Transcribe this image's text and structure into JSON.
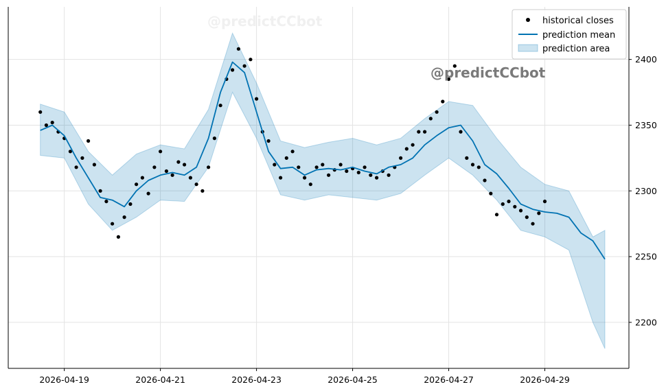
{
  "chart_data": {
    "type": "line",
    "title": "",
    "xlabel": "",
    "ylabel": "",
    "x_axis": {
      "type": "date",
      "range": [
        "2026-04-17T20:00",
        "2026-04-30T18:00"
      ],
      "ticks": [
        "2026-04-19",
        "2026-04-21",
        "2026-04-23",
        "2026-04-25",
        "2026-04-27",
        "2026-04-29"
      ]
    },
    "y_axis": {
      "position": "right",
      "range": [
        2165,
        2440
      ],
      "ticks": [
        2200,
        2250,
        2300,
        2350,
        2400
      ]
    },
    "grid": true,
    "legend": {
      "placement": "top-right",
      "entries": [
        {
          "label": "historical closes",
          "marker": "dot",
          "color": "#000000"
        },
        {
          "label": "prediction mean",
          "marker": "line",
          "color": "#0072B2"
        },
        {
          "label": "prediction area",
          "marker": "patch",
          "color": "#0072B2"
        }
      ]
    },
    "watermark": "@predictCCbot",
    "series": [
      {
        "name": "prediction mean",
        "color": "#0072B2",
        "x": [
          "2026-04-18T12:00",
          "2026-04-18T18:00",
          "2026-04-19T00:00",
          "2026-04-19T06:00",
          "2026-04-19T12:00",
          "2026-04-19T18:00",
          "2026-04-20T00:00",
          "2026-04-20T06:00",
          "2026-04-20T12:00",
          "2026-04-20T18:00",
          "2026-04-21T00:00",
          "2026-04-21T06:00",
          "2026-04-21T12:00",
          "2026-04-21T18:00",
          "2026-04-22T00:00",
          "2026-04-22T06:00",
          "2026-04-22T12:00",
          "2026-04-22T18:00",
          "2026-04-23T00:00",
          "2026-04-23T06:00",
          "2026-04-23T12:00",
          "2026-04-23T18:00",
          "2026-04-24T00:00",
          "2026-04-24T06:00",
          "2026-04-24T12:00",
          "2026-04-24T18:00",
          "2026-04-25T00:00",
          "2026-04-25T06:00",
          "2026-04-25T12:00",
          "2026-04-25T18:00",
          "2026-04-26T00:00",
          "2026-04-26T06:00",
          "2026-04-26T12:00",
          "2026-04-26T18:00",
          "2026-04-27T00:00",
          "2026-04-27T06:00",
          "2026-04-27T12:00",
          "2026-04-27T18:00",
          "2026-04-28T00:00",
          "2026-04-28T06:00",
          "2026-04-28T12:00",
          "2026-04-28T18:00",
          "2026-04-29T00:00",
          "2026-04-29T06:00",
          "2026-04-29T12:00",
          "2026-04-29T18:00",
          "2026-04-30T00:00",
          "2026-04-30T06:00"
        ],
        "values": [
          2346,
          2350,
          2342,
          2325,
          2310,
          2295,
          2293,
          2288,
          2300,
          2308,
          2312,
          2314,
          2312,
          2318,
          2340,
          2375,
          2398,
          2390,
          2360,
          2330,
          2317,
          2318,
          2312,
          2316,
          2317,
          2316,
          2318,
          2315,
          2313,
          2318,
          2320,
          2325,
          2335,
          2342,
          2348,
          2350,
          2338,
          2320,
          2313,
          2302,
          2290,
          2286,
          2284,
          2283,
          2280,
          2268,
          2262,
          2248
        ]
      }
    ],
    "prediction_area": {
      "name": "prediction area",
      "x": [
        "2026-04-18T12:00",
        "2026-04-19T00:00",
        "2026-04-19T12:00",
        "2026-04-20T00:00",
        "2026-04-20T12:00",
        "2026-04-21T00:00",
        "2026-04-21T12:00",
        "2026-04-22T00:00",
        "2026-04-22T12:00",
        "2026-04-23T00:00",
        "2026-04-23T12:00",
        "2026-04-24T00:00",
        "2026-04-24T12:00",
        "2026-04-25T00:00",
        "2026-04-25T12:00",
        "2026-04-26T00:00",
        "2026-04-26T12:00",
        "2026-04-27T00:00",
        "2026-04-27T12:00",
        "2026-04-28T00:00",
        "2026-04-28T12:00",
        "2026-04-29T00:00",
        "2026-04-29T12:00",
        "2026-04-30T00:00",
        "2026-04-30T06:00"
      ],
      "lower": [
        2327,
        2325,
        2290,
        2270,
        2280,
        2293,
        2292,
        2318,
        2375,
        2340,
        2297,
        2293,
        2297,
        2295,
        2293,
        2298,
        2312,
        2325,
        2312,
        2293,
        2270,
        2265,
        2255,
        2200,
        2180
      ],
      "upper": [
        2366,
        2360,
        2330,
        2312,
        2328,
        2335,
        2332,
        2362,
        2420,
        2382,
        2338,
        2333,
        2337,
        2340,
        2335,
        2340,
        2355,
        2368,
        2365,
        2340,
        2318,
        2305,
        2300,
        2265,
        2270
      ]
    },
    "historical_closes": {
      "name": "historical closes",
      "color": "#000000",
      "x": [
        "2026-04-18T12:00",
        "2026-04-18T15:00",
        "2026-04-18T18:00",
        "2026-04-18T21:00",
        "2026-04-19T00:00",
        "2026-04-19T03:00",
        "2026-04-19T06:00",
        "2026-04-19T09:00",
        "2026-04-19T12:00",
        "2026-04-19T15:00",
        "2026-04-19T18:00",
        "2026-04-19T21:00",
        "2026-04-20T00:00",
        "2026-04-20T03:00",
        "2026-04-20T06:00",
        "2026-04-20T09:00",
        "2026-04-20T12:00",
        "2026-04-20T15:00",
        "2026-04-20T18:00",
        "2026-04-20T21:00",
        "2026-04-21T00:00",
        "2026-04-21T03:00",
        "2026-04-21T06:00",
        "2026-04-21T09:00",
        "2026-04-21T12:00",
        "2026-04-21T15:00",
        "2026-04-21T18:00",
        "2026-04-21T21:00",
        "2026-04-22T00:00",
        "2026-04-22T03:00",
        "2026-04-22T06:00",
        "2026-04-22T09:00",
        "2026-04-22T12:00",
        "2026-04-22T15:00",
        "2026-04-22T18:00",
        "2026-04-22T21:00",
        "2026-04-23T00:00",
        "2026-04-23T03:00",
        "2026-04-23T06:00",
        "2026-04-23T09:00",
        "2026-04-23T12:00",
        "2026-04-23T15:00",
        "2026-04-23T18:00",
        "2026-04-23T21:00",
        "2026-04-24T00:00",
        "2026-04-24T03:00",
        "2026-04-24T06:00",
        "2026-04-24T09:00",
        "2026-04-24T12:00",
        "2026-04-24T15:00",
        "2026-04-24T18:00",
        "2026-04-24T21:00",
        "2026-04-25T00:00",
        "2026-04-25T03:00",
        "2026-04-25T06:00",
        "2026-04-25T09:00",
        "2026-04-25T12:00",
        "2026-04-25T15:00",
        "2026-04-25T18:00",
        "2026-04-25T21:00",
        "2026-04-26T00:00",
        "2026-04-26T03:00",
        "2026-04-26T06:00",
        "2026-04-26T09:00",
        "2026-04-26T12:00",
        "2026-04-26T15:00",
        "2026-04-26T18:00",
        "2026-04-26T21:00",
        "2026-04-27T00:00",
        "2026-04-27T03:00",
        "2026-04-27T06:00",
        "2026-04-27T09:00",
        "2026-04-27T12:00",
        "2026-04-27T15:00",
        "2026-04-27T18:00",
        "2026-04-27T21:00",
        "2026-04-28T00:00",
        "2026-04-28T03:00",
        "2026-04-28T06:00",
        "2026-04-28T09:00",
        "2026-04-28T12:00",
        "2026-04-28T15:00",
        "2026-04-28T18:00",
        "2026-04-28T21:00",
        "2026-04-29T00:00"
      ],
      "values": [
        2360,
        2350,
        2352,
        2345,
        2340,
        2330,
        2318,
        2325,
        2338,
        2320,
        2300,
        2292,
        2275,
        2265,
        2280,
        2290,
        2305,
        2310,
        2298,
        2318,
        2330,
        2315,
        2312,
        2322,
        2320,
        2310,
        2305,
        2300,
        2318,
        2340,
        2365,
        2385,
        2392,
        2408,
        2395,
        2400,
        2370,
        2345,
        2338,
        2320,
        2310,
        2325,
        2330,
        2318,
        2310,
        2305,
        2318,
        2320,
        2312,
        2316,
        2320,
        2315,
        2317,
        2314,
        2318,
        2312,
        2310,
        2315,
        2312,
        2318,
        2325,
        2332,
        2335,
        2345,
        2345,
        2355,
        2360,
        2368,
        2385,
        2395,
        2345,
        2325,
        2320,
        2318,
        2308,
        2298,
        2282,
        2290,
        2292,
        2288,
        2285,
        2280,
        2275,
        2283,
        2292
      ]
    }
  }
}
